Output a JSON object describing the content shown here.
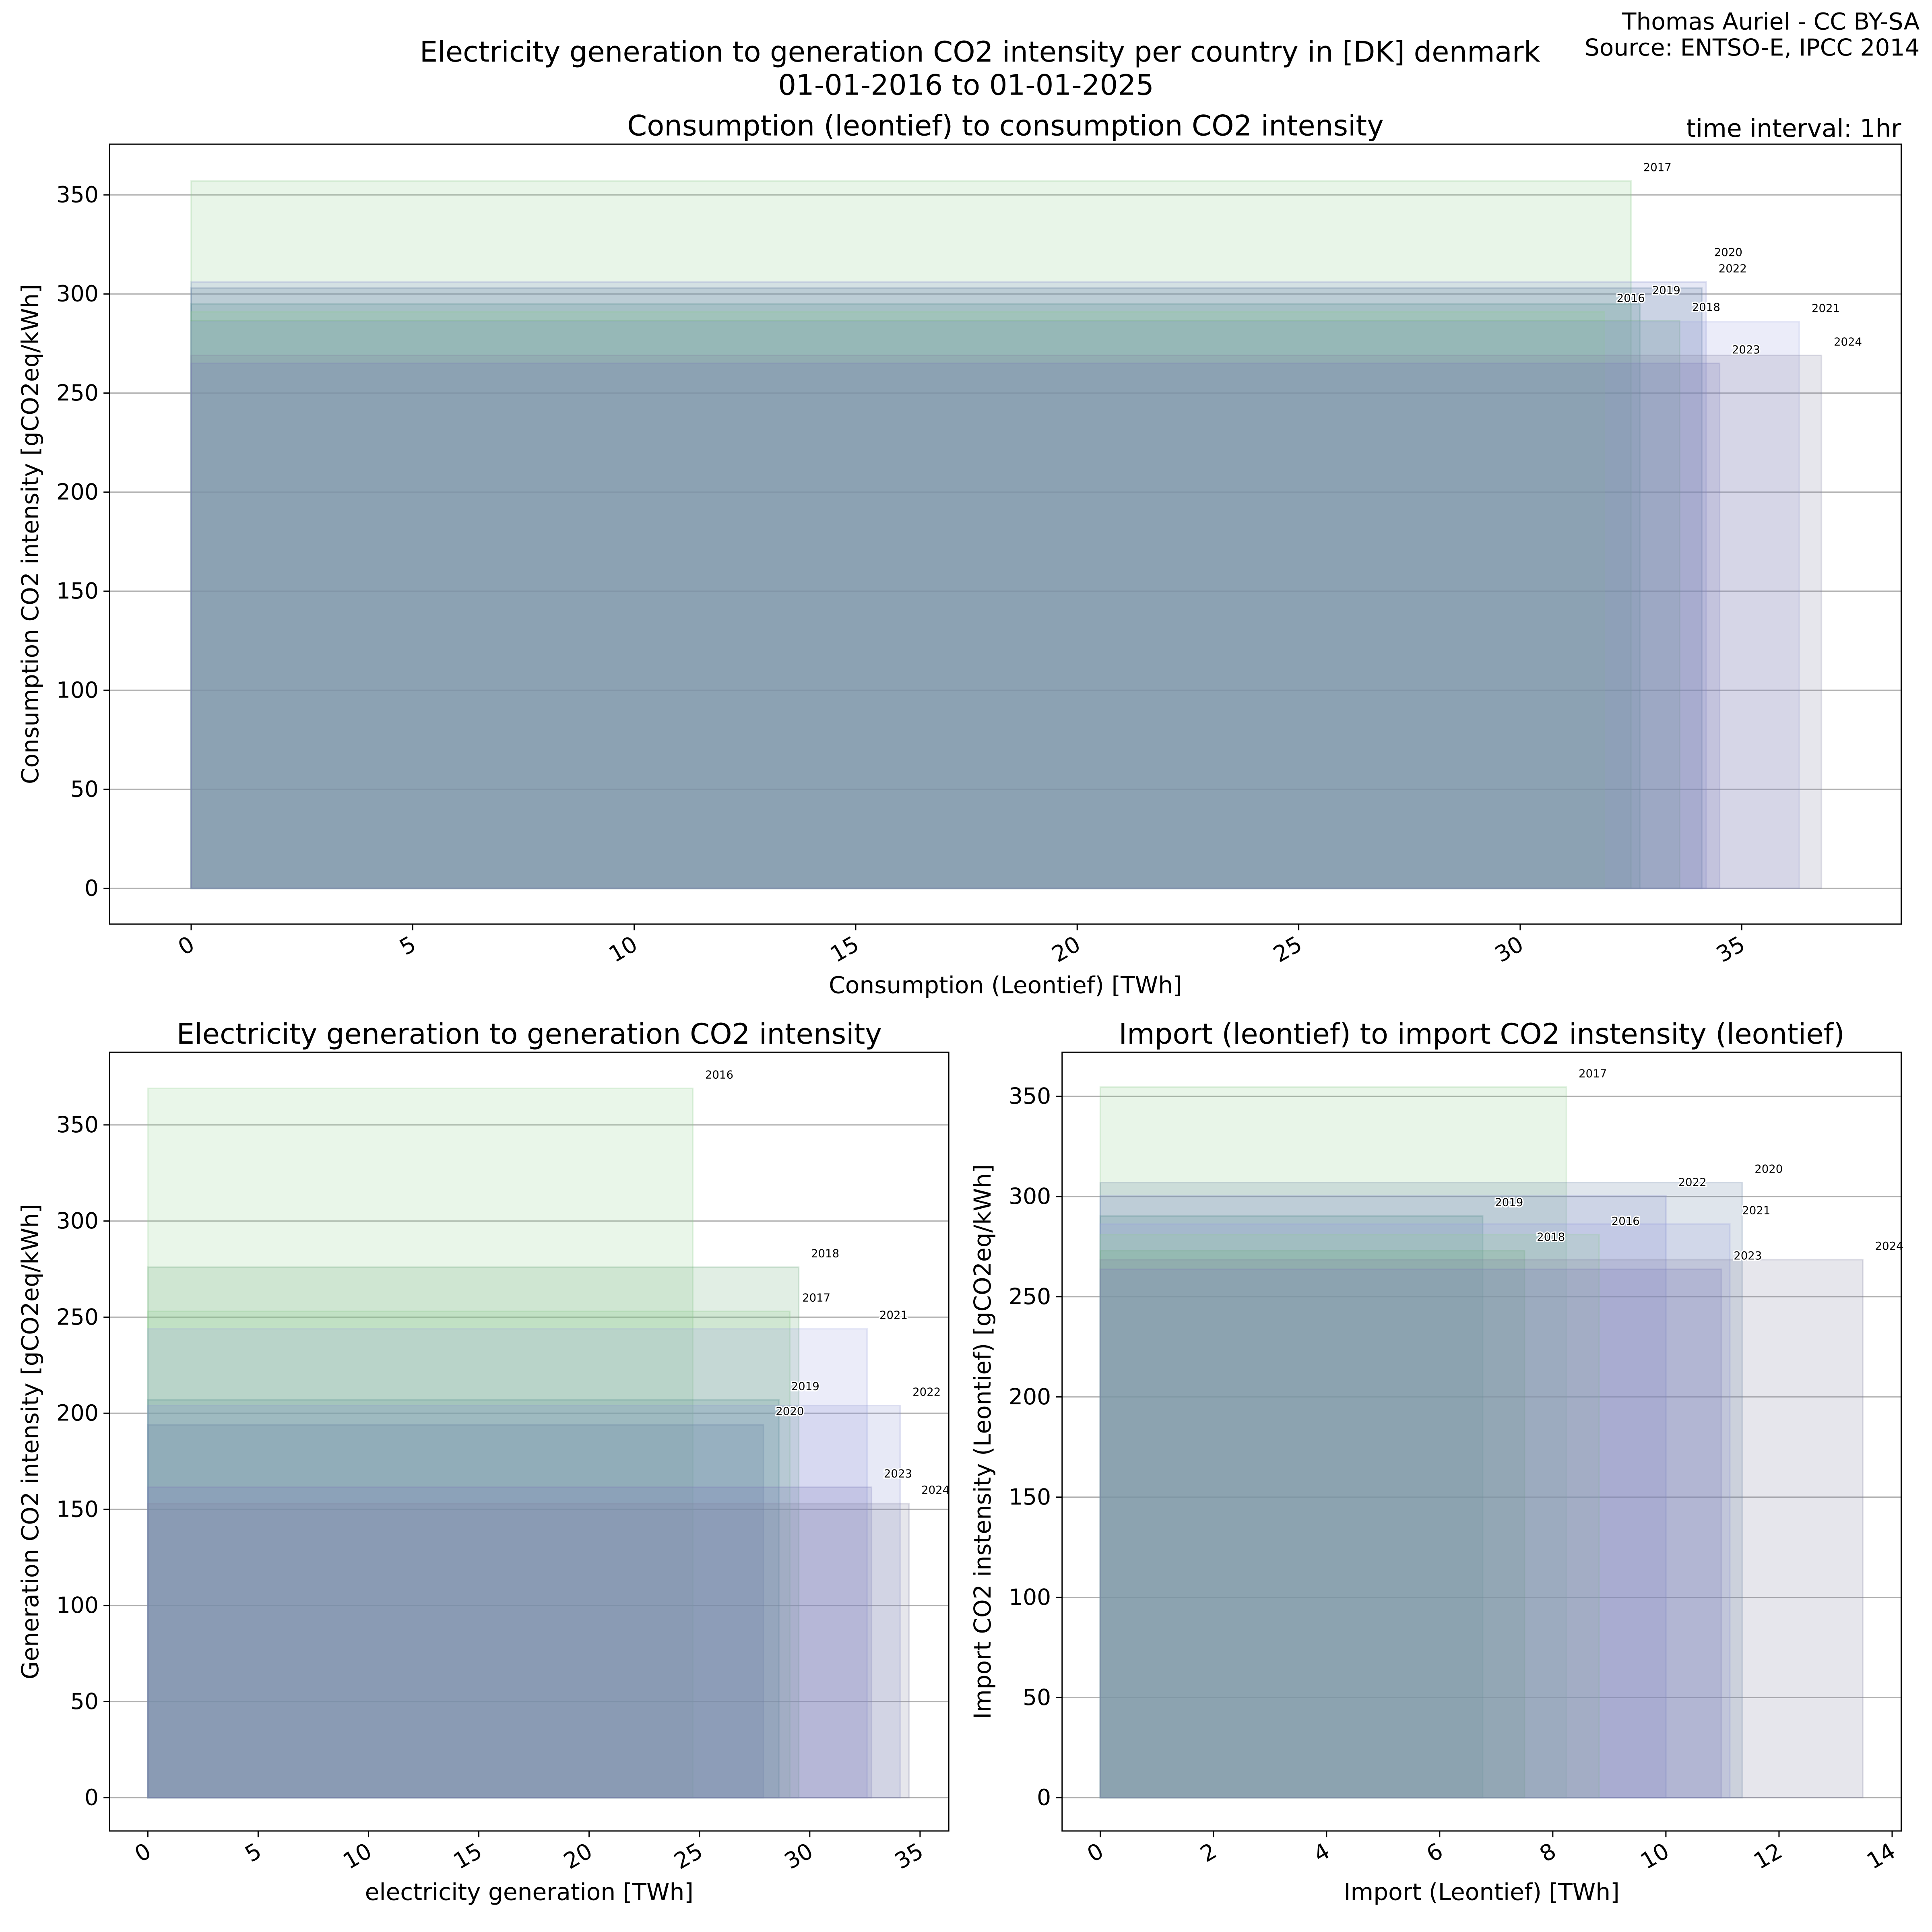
{
  "header": {
    "title_line1": "Electricity generation to generation CO2 intensity per country in [DK] denmark",
    "title_line2": "01-01-2016 to 01-01-2025",
    "credit": "Thomas Auriel - CC BY-SA",
    "source": "Source: ENTSO-E, IPCC 2014"
  },
  "colors": {
    "2016": "#8fd08f",
    "2017": "#8ccc8c",
    "2018": "#6aa87a",
    "2019": "#4f8a8b",
    "2020": "#5e7ba0",
    "2021": "#9aa2e0",
    "2022": "#8890d0",
    "2023": "#7a7ab8",
    "2024": "#8080a0"
  },
  "chart_data": [
    {
      "type": "bar",
      "title": "Consumption (leontief) to consumption CO2 intensity",
      "annotation": "time interval: 1hr",
      "xlabel": "Consumption (Leontief) [TWh]",
      "ylabel": "Consumption CO2 intensity [gCO2eq/kWh]",
      "xlim": [
        -1.84,
        38.6
      ],
      "ylim": [
        -18,
        375.6
      ],
      "xticks": [
        0,
        5,
        10,
        15,
        20,
        25,
        30,
        35
      ],
      "yticks": [
        0,
        50,
        100,
        150,
        200,
        250,
        300,
        350
      ],
      "grid": "y",
      "series": [
        {
          "name": "2017",
          "x": 32.5,
          "y": 357
        },
        {
          "name": "2022",
          "x": 34.2,
          "y": 306
        },
        {
          "name": "2020",
          "x": 34.1,
          "y": 303
        },
        {
          "name": "2019",
          "x": 32.7,
          "y": 295
        },
        {
          "name": "2016",
          "x": 31.9,
          "y": 291
        },
        {
          "name": "2018",
          "x": 33.6,
          "y": 286.5
        },
        {
          "name": "2021",
          "x": 36.3,
          "y": 286
        },
        {
          "name": "2024",
          "x": 36.8,
          "y": 269
        },
        {
          "name": "2023",
          "x": 34.5,
          "y": 265
        }
      ]
    },
    {
      "type": "bar",
      "title": "Electricity generation to generation CO2 intensity",
      "xlabel": "electricity generation [TWh]",
      "ylabel": "Generation CO2 intensity [gCO2eq/kWh]",
      "xlim": [
        -1.73,
        36.3
      ],
      "ylim": [
        -17.3,
        387.8
      ],
      "xticks": [
        0,
        5,
        10,
        15,
        20,
        25,
        30,
        35
      ],
      "yticks": [
        0,
        50,
        100,
        150,
        200,
        250,
        300,
        350
      ],
      "grid": "y",
      "series": [
        {
          "name": "2016",
          "x": 24.7,
          "y": 369
        },
        {
          "name": "2018",
          "x": 29.5,
          "y": 276
        },
        {
          "name": "2017",
          "x": 29.1,
          "y": 253
        },
        {
          "name": "2021",
          "x": 32.6,
          "y": 244
        },
        {
          "name": "2019",
          "x": 28.6,
          "y": 207
        },
        {
          "name": "2022",
          "x": 34.1,
          "y": 204
        },
        {
          "name": "2020",
          "x": 27.9,
          "y": 194
        },
        {
          "name": "2023",
          "x": 32.8,
          "y": 161.5
        },
        {
          "name": "2024",
          "x": 34.5,
          "y": 153
        }
      ]
    },
    {
      "type": "bar",
      "title": "Import (leontief) to import CO2 instensity (leontief)",
      "xlabel": "Import (Leontief) [TWh]",
      "ylabel": "Import CO2 instensity (Leontief) [gCO2eq/kWh]",
      "xlim": [
        -0.675,
        14.16
      ],
      "ylim": [
        -16.6,
        372
      ],
      "xticks": [
        0,
        2,
        4,
        6,
        8,
        10,
        12,
        14
      ],
      "yticks": [
        0,
        50,
        100,
        150,
        200,
        250,
        300,
        350
      ],
      "grid": "y",
      "series": [
        {
          "name": "2017",
          "x": 8.24,
          "y": 354.6
        },
        {
          "name": "2020",
          "x": 11.35,
          "y": 307
        },
        {
          "name": "2022",
          "x": 10.0,
          "y": 300.4
        },
        {
          "name": "2019",
          "x": 6.76,
          "y": 290.3
        },
        {
          "name": "2021",
          "x": 11.13,
          "y": 286.3
        },
        {
          "name": "2016",
          "x": 8.82,
          "y": 281
        },
        {
          "name": "2018",
          "x": 7.5,
          "y": 273
        },
        {
          "name": "2024",
          "x": 13.48,
          "y": 268.5
        },
        {
          "name": "2023",
          "x": 10.98,
          "y": 263.7
        }
      ]
    }
  ]
}
